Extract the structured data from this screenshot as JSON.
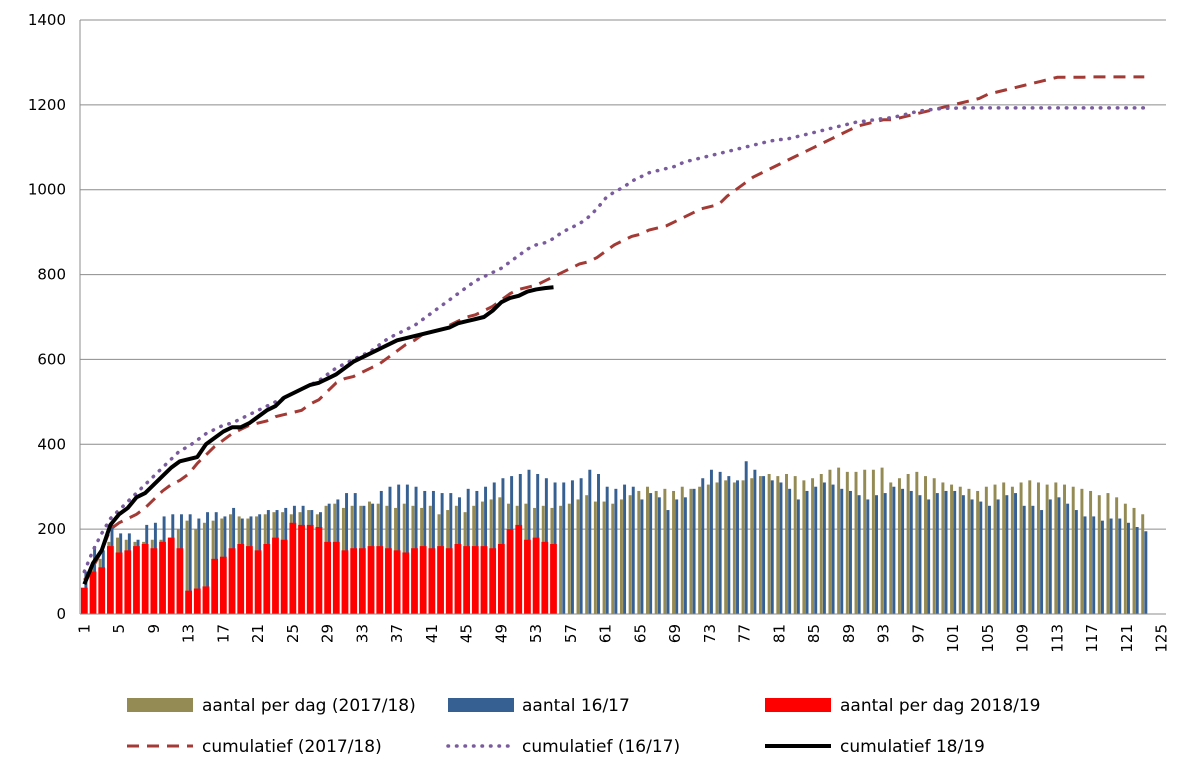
{
  "chart_data": {
    "type": "bar",
    "title": "",
    "xlabel": "",
    "ylabel": "",
    "ylim": [
      0,
      1400
    ],
    "yticks": [
      0,
      200,
      400,
      600,
      800,
      1000,
      1200,
      1400
    ],
    "xlim": [
      1,
      125
    ],
    "xticks": [
      1,
      5,
      9,
      13,
      17,
      21,
      25,
      29,
      33,
      37,
      41,
      45,
      49,
      53,
      57,
      61,
      65,
      69,
      73,
      77,
      81,
      85,
      89,
      93,
      97,
      101,
      105,
      109,
      113,
      117,
      121,
      125
    ],
    "grid": "horizontal",
    "legend_position": "bottom",
    "colors": {
      "bar_2017_18": "#948A54",
      "bar_16_17": "#376092",
      "bar_2018_19": "#FF0000",
      "line_2017_18": "#A33A35",
      "line_16_17": "#7A5C9E",
      "line_18_19": "#000000"
    },
    "series": [
      {
        "name": "aantal per dag (2017/18)",
        "kind": "bar",
        "values": [
          60,
          110,
          130,
          170,
          180,
          175,
          170,
          170,
          175,
          175,
          180,
          200,
          220,
          200,
          215,
          220,
          225,
          235,
          230,
          225,
          230,
          235,
          240,
          240,
          235,
          240,
          245,
          235,
          255,
          260,
          250,
          255,
          255,
          265,
          260,
          255,
          250,
          260,
          255,
          250,
          255,
          235,
          245,
          255,
          240,
          255,
          265,
          270,
          275,
          260,
          255,
          260,
          250,
          255,
          250,
          255,
          260,
          270,
          280,
          265,
          265,
          260,
          270,
          280,
          290,
          300,
          290,
          295,
          290,
          300,
          295,
          300,
          305,
          310,
          315,
          310,
          315,
          320,
          325,
          330,
          325,
          330,
          325,
          315,
          320,
          330,
          340,
          345,
          335,
          335,
          340,
          340,
          345,
          310,
          320,
          330,
          335,
          325,
          320,
          310,
          305,
          300,
          295,
          290,
          300,
          305,
          310,
          300,
          310,
          315,
          310,
          305,
          310,
          305,
          300,
          295,
          290,
          280,
          285,
          275,
          260,
          250,
          235
        ]
      },
      {
        "name": "aantal 16/17",
        "kind": "bar",
        "values": [
          100,
          160,
          150,
          210,
          190,
          190,
          175,
          210,
          215,
          230,
          235,
          235,
          235,
          225,
          240,
          240,
          230,
          250,
          225,
          230,
          235,
          245,
          245,
          250,
          255,
          255,
          245,
          240,
          260,
          270,
          285,
          285,
          255,
          260,
          290,
          300,
          305,
          305,
          300,
          290,
          290,
          285,
          285,
          275,
          295,
          290,
          300,
          310,
          320,
          325,
          330,
          340,
          330,
          320,
          310,
          310,
          315,
          320,
          340,
          330,
          300,
          295,
          305,
          300,
          270,
          285,
          275,
          245,
          270,
          275,
          295,
          320,
          340,
          335,
          325,
          315,
          360,
          340,
          325,
          315,
          310,
          295,
          270,
          290,
          300,
          310,
          305,
          295,
          290,
          280,
          270,
          280,
          285,
          300,
          295,
          290,
          280,
          270,
          285,
          290,
          290,
          280,
          270,
          265,
          255,
          270,
          280,
          285,
          255,
          255,
          245,
          270,
          275,
          260,
          245,
          230,
          230,
          220,
          225,
          225,
          215,
          205,
          195
        ]
      },
      {
        "name": "aantal per dag 2018/19",
        "kind": "bar",
        "values": [
          62,
          100,
          110,
          160,
          145,
          150,
          160,
          165,
          155,
          170,
          180,
          155,
          55,
          60,
          65,
          130,
          135,
          155,
          165,
          160,
          150,
          165,
          180,
          175,
          215,
          210,
          210,
          205,
          170,
          170,
          150,
          155,
          155,
          160,
          160,
          155,
          150,
          145,
          155,
          160,
          155,
          160,
          155,
          165,
          160,
          160,
          160,
          155,
          165,
          200,
          210,
          175,
          180,
          170,
          165
        ]
      },
      {
        "name": "cumulatief (2017/18)",
        "kind": "line",
        "values": [
          80,
          110,
          150,
          200,
          215,
          225,
          235,
          250,
          270,
          290,
          305,
          315,
          330,
          355,
          375,
          395,
          410,
          425,
          435,
          445,
          450,
          455,
          465,
          470,
          475,
          480,
          495,
          505,
          525,
          545,
          555,
          560,
          570,
          580,
          590,
          605,
          620,
          635,
          645,
          660,
          665,
          670,
          680,
          690,
          700,
          705,
          715,
          725,
          740,
          755,
          765,
          770,
          775,
          785,
          795,
          805,
          815,
          825,
          830,
          840,
          855,
          870,
          880,
          890,
          895,
          905,
          910,
          915,
          925,
          935,
          945,
          955,
          960,
          965,
          985,
          1000,
          1015,
          1030,
          1040,
          1050,
          1060,
          1070,
          1080,
          1090,
          1100,
          1110,
          1120,
          1130,
          1140,
          1150,
          1155,
          1160,
          1165,
          1165,
          1170,
          1175,
          1180,
          1185,
          1190,
          1195,
          1200,
          1205,
          1210,
          1215,
          1225,
          1230,
          1235,
          1240,
          1245,
          1250,
          1255,
          1260,
          1265,
          1265,
          1265,
          1265,
          1266,
          1266,
          1266,
          1266,
          1266,
          1266,
          1266
        ]
      },
      {
        "name": "cumulatief (16/17)",
        "kind": "line",
        "values": [
          100,
          150,
          190,
          225,
          245,
          265,
          285,
          305,
          325,
          345,
          365,
          385,
          395,
          410,
          425,
          435,
          445,
          450,
          460,
          470,
          480,
          490,
          500,
          510,
          520,
          530,
          540,
          550,
          565,
          580,
          590,
          600,
          610,
          620,
          635,
          650,
          660,
          670,
          680,
          695,
          710,
          725,
          740,
          755,
          770,
          785,
          795,
          805,
          815,
          830,
          845,
          860,
          870,
          875,
          885,
          900,
          910,
          920,
          935,
          955,
          980,
          995,
          1005,
          1020,
          1030,
          1040,
          1045,
          1050,
          1055,
          1065,
          1070,
          1075,
          1080,
          1085,
          1090,
          1095,
          1100,
          1105,
          1110,
          1115,
          1118,
          1120,
          1125,
          1130,
          1135,
          1140,
          1145,
          1150,
          1155,
          1160,
          1162,
          1165,
          1168,
          1170,
          1175,
          1180,
          1185,
          1188,
          1190,
          1192,
          1192,
          1193,
          1193,
          1193,
          1193,
          1193,
          1193,
          1193,
          1193,
          1193,
          1193,
          1193,
          1193,
          1193,
          1193,
          1193,
          1193,
          1193,
          1193,
          1193,
          1193,
          1193,
          1193
        ]
      },
      {
        "name": "cumulatief 18/19",
        "kind": "line",
        "values": [
          70,
          120,
          150,
          210,
          235,
          250,
          275,
          285,
          305,
          325,
          345,
          360,
          365,
          370,
          400,
          415,
          430,
          440,
          440,
          450,
          465,
          480,
          490,
          510,
          520,
          530,
          540,
          545,
          555,
          565,
          580,
          595,
          605,
          615,
          625,
          635,
          645,
          650,
          655,
          660,
          665,
          670,
          675,
          685,
          690,
          695,
          700,
          715,
          735,
          745,
          750,
          760,
          765,
          768,
          770
        ]
      }
    ],
    "legend": [
      "aantal per dag (2017/18)",
      "aantal 16/17",
      "aantal per dag 2018/19",
      "cumulatief (2017/18)",
      "cumulatief (16/17)",
      "cumulatief 18/19"
    ]
  }
}
